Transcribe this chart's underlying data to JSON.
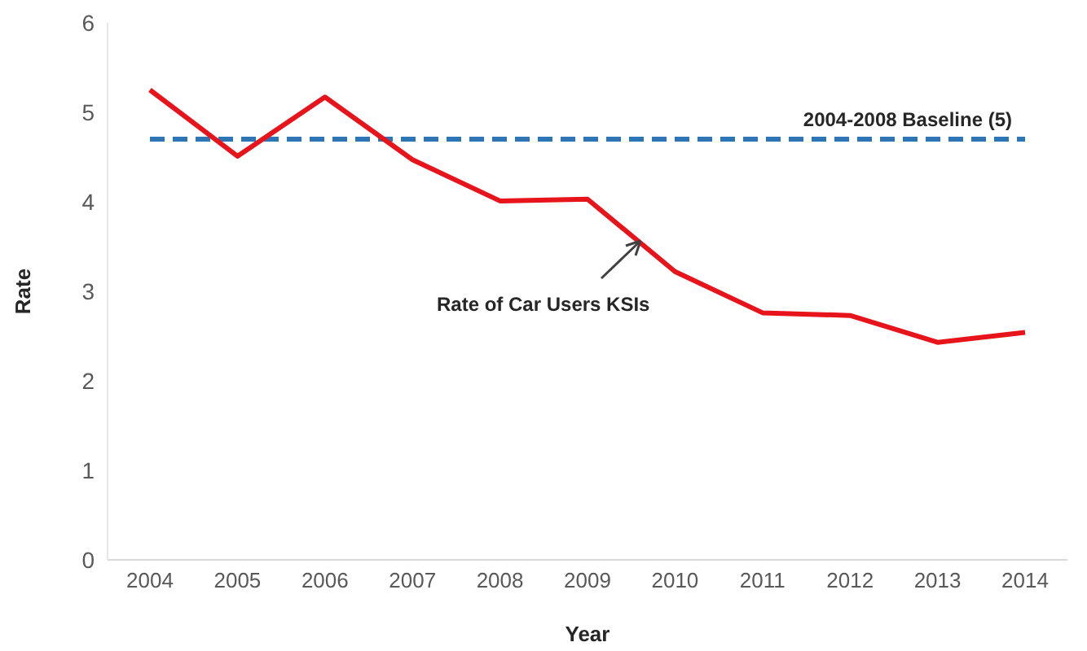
{
  "chart_data": {
    "type": "line",
    "xlabel": "Year",
    "ylabel": "Rate",
    "categories": [
      "2004",
      "2005",
      "2006",
      "2007",
      "2008",
      "2009",
      "2010",
      "2011",
      "2012",
      "2013",
      "2014"
    ],
    "series": [
      {
        "color": "#e8141c",
        "values": [
          5.25,
          4.51,
          5.17,
          4.47,
          4.01,
          4.03,
          3.22,
          2.76,
          2.73,
          2.43,
          2.54
        ]
      }
    ],
    "ylim": [
      0,
      6
    ],
    "yticks": [
      0,
      1,
      2,
      3,
      4,
      5,
      6
    ],
    "ref_lines": [
      {
        "axis": "y",
        "value": 4.7,
        "label": "2004-2008 Baseline (5)",
        "color": "#2e75b6",
        "line_style": "dashed"
      }
    ],
    "annotations": [
      "Rate of Car Users KSIs"
    ],
    "marker": "none",
    "line_style": "solid"
  }
}
